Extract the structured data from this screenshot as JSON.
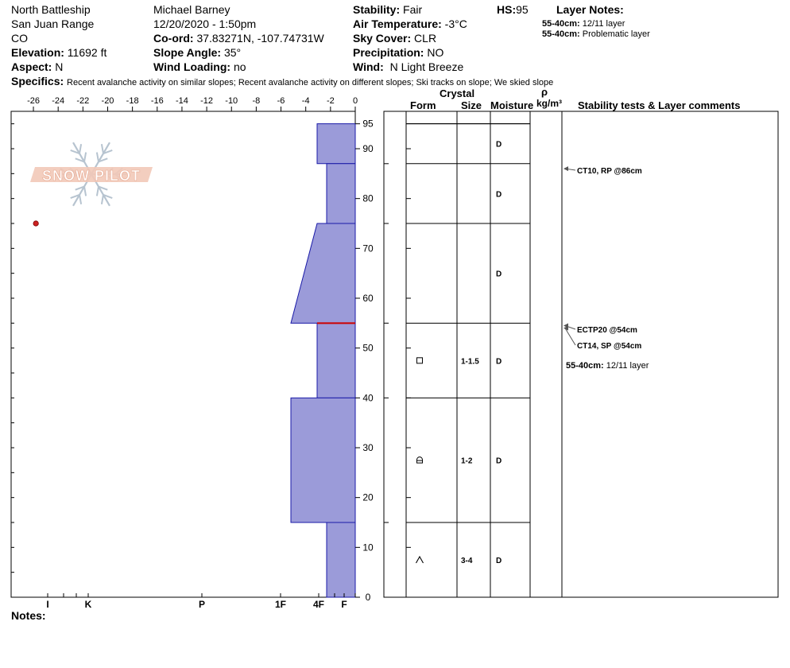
{
  "header": {
    "location": "North Battleship",
    "range": "San Juan Range",
    "state": "CO",
    "elevation_label": "Elevation:",
    "elevation": "11692 ft",
    "aspect_label": "Aspect:",
    "aspect": "N",
    "observer": "Michael Barney",
    "datetime": "12/20/2020 - 1:50pm",
    "coord_label": "Co-ord:",
    "coord": "37.83271N, -107.74731W",
    "slope_label": "Slope Angle:",
    "slope": "35°",
    "wind_loading_label": "Wind Loading:",
    "wind_loading": "no",
    "stability_label": "Stability:",
    "stability": "Fair",
    "air_temp_label": "Air Temperature:",
    "air_temp": "-3°C",
    "sky_label": "Sky Cover:",
    "sky": "CLR",
    "precip_label": "Precipitation:",
    "precip": "NO",
    "wind_label": "Wind:",
    "wind": "N Light Breeze",
    "hs_label": "HS:",
    "hs": "95",
    "layer_notes_label": "Layer Notes:",
    "layer_notes": [
      {
        "depth": "55-40cm:",
        "text": "12/11 layer"
      },
      {
        "depth": "55-40cm:",
        "text": "Problematic layer"
      }
    ],
    "specifics_label": "Specifics:",
    "specifics": "Recent avalanche activity on similar slopes; Recent avalanche activity on different slopes; Ski tracks on slope; We skied slope"
  },
  "logo_text": "SNOW PILOT",
  "notes_label": "Notes:",
  "columns": {
    "crystal": "Crystal",
    "form": "Form",
    "size": "Size",
    "moisture": "Moisture",
    "rho": "ρ",
    "density": "kg/m³",
    "comments": "Stability tests & Layer comments"
  },
  "chart_data": {
    "type": "snow_profile",
    "temperature_axis": {
      "ticks": [
        -26,
        -24,
        -22,
        -20,
        -18,
        -16,
        -14,
        -12,
        -10,
        -8,
        -6,
        -4,
        -2,
        0
      ],
      "range": [
        -27.8,
        0
      ]
    },
    "height_axis": {
      "ticks": [
        0,
        10,
        20,
        30,
        40,
        50,
        60,
        70,
        80,
        90,
        95
      ],
      "range": [
        0,
        97.5
      ]
    },
    "hardness_axis": {
      "labels": [
        "I",
        "K",
        "P",
        "1F",
        "4F",
        "F"
      ]
    },
    "temperature_points": [
      {
        "temp": -25.8,
        "height": 75
      }
    ],
    "layers": [
      {
        "top": 95,
        "bottom": 87,
        "hardness_top": "4F",
        "hardness_bottom": "4F",
        "form": "",
        "size": "",
        "moisture": "D"
      },
      {
        "top": 87,
        "bottom": 75,
        "hardness_top": "F+",
        "hardness_bottom": "F+",
        "form": "",
        "size": "",
        "moisture": "D"
      },
      {
        "top": 75,
        "bottom": 55,
        "hardness_top": "4F-",
        "hardness_bottom": "1F-",
        "form": "",
        "size": "",
        "moisture": "D"
      },
      {
        "top": 55,
        "bottom": 40,
        "hardness_top": "4F",
        "hardness_bottom": "4F",
        "form": "facets",
        "size": "1-1.5",
        "moisture": "D"
      },
      {
        "top": 40,
        "bottom": 15,
        "hardness_top": "1F-",
        "hardness_bottom": "1F-",
        "form": "rounding facets",
        "size": "1-2",
        "moisture": "D"
      },
      {
        "top": 15,
        "bottom": 0,
        "hardness_top": "F+",
        "hardness_bottom": "F+",
        "form": "depth hoar",
        "size": "3-4",
        "moisture": "D"
      }
    ],
    "weak_layer_height": 55,
    "stability_tests": [
      {
        "label": "CT10, RP @86cm",
        "height": 86
      },
      {
        "label": "ECTP20 @54cm",
        "height": 54
      },
      {
        "label": "CT14, SP @54cm",
        "height": 54
      }
    ],
    "layer_comments": [
      {
        "depth": "55-40cm:",
        "text": "12/11 layer",
        "height": 46
      }
    ]
  }
}
